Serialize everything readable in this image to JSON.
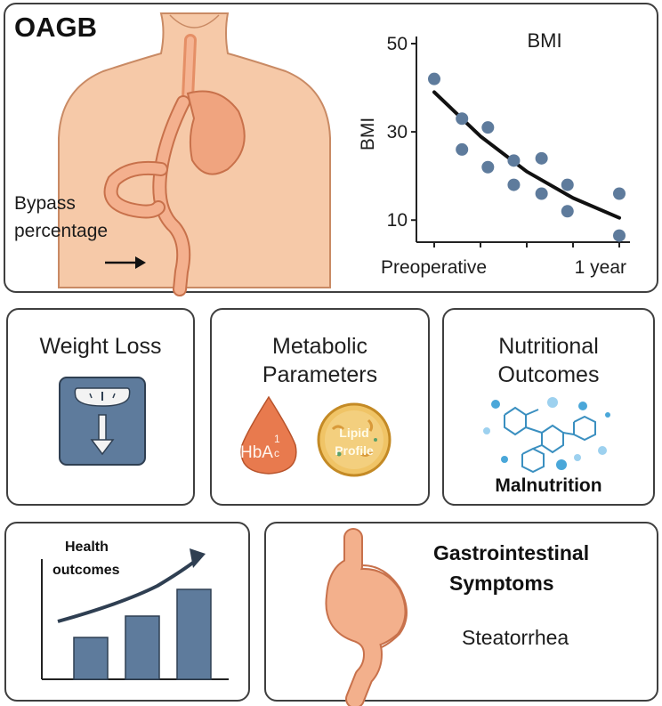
{
  "top": {
    "title": "OAGB",
    "bypass_line1": "Bypass",
    "bypass_line2": "percentage"
  },
  "chart_data": {
    "type": "scatter",
    "title": "BMI",
    "ylabel": "BMI",
    "xlabel": "",
    "x_tick_labels": [
      "Preoperative",
      "1 year"
    ],
    "yticks": [
      10,
      30,
      50
    ],
    "ylim": [
      5,
      50
    ],
    "xlim": [
      0,
      1
    ],
    "points": [
      {
        "x": 0.0,
        "y": 42
      },
      {
        "x": 0.15,
        "y": 33
      },
      {
        "x": 0.15,
        "y": 26
      },
      {
        "x": 0.29,
        "y": 31
      },
      {
        "x": 0.29,
        "y": 22
      },
      {
        "x": 0.43,
        "y": 23.5
      },
      {
        "x": 0.43,
        "y": 18
      },
      {
        "x": 0.58,
        "y": 24
      },
      {
        "x": 0.58,
        "y": 16
      },
      {
        "x": 0.72,
        "y": 18
      },
      {
        "x": 0.72,
        "y": 12
      },
      {
        "x": 1.0,
        "y": 16
      },
      {
        "x": 1.0,
        "y": 6.5
      }
    ],
    "trend": [
      {
        "x": 0.0,
        "y": 39
      },
      {
        "x": 0.25,
        "y": 29
      },
      {
        "x": 0.5,
        "y": 21
      },
      {
        "x": 0.75,
        "y": 15
      },
      {
        "x": 1.0,
        "y": 10.5
      }
    ],
    "grid": false,
    "colors": {
      "points": "#5e7b9c",
      "trend": "#111111"
    }
  },
  "weight": {
    "title": "Weight Loss"
  },
  "metabolic": {
    "title_line1": "Metabolic",
    "title_line2": "Parameters",
    "hba1c_main": "HbA",
    "hba1c_sup": "1",
    "hba1c_sub": "c",
    "lipid_line1": "Lipid",
    "lipid_line2": "Profile"
  },
  "nutrition": {
    "title_line1": "Nutritional",
    "title_line2": "Outcomes",
    "caption": "Malnutrition"
  },
  "health": {
    "label_line1": "Health",
    "label_line2": "outcomes"
  },
  "gi": {
    "title_line1": "Gastrointestinal",
    "title_line2": "Symptoms",
    "symptom": "Steatorrhea"
  },
  "colors": {
    "skin": "#f6c9a8",
    "stomach": "#f2a57f",
    "slate": "#5e7b9c",
    "drop": "#e87a4e",
    "lipid": "#e8b246",
    "molecule": "#4aa7d9"
  }
}
